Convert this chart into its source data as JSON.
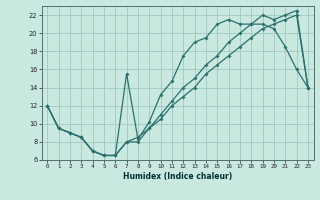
{
  "title": "",
  "xlabel": "Humidex (Indice chaleur)",
  "bg_color": "#c8e8e0",
  "grid_color": "#a0c8c0",
  "line_color": "#2d7070",
  "xlim": [
    -0.5,
    23.5
  ],
  "ylim": [
    6,
    23
  ],
  "xticks": [
    0,
    1,
    2,
    3,
    4,
    5,
    6,
    7,
    8,
    9,
    10,
    11,
    12,
    13,
    14,
    15,
    16,
    17,
    18,
    19,
    20,
    21,
    22,
    23
  ],
  "yticks": [
    6,
    8,
    10,
    12,
    14,
    16,
    18,
    20,
    22
  ],
  "series1_x": [
    0,
    1,
    2,
    3,
    4,
    5,
    6,
    7,
    8,
    9,
    10,
    11,
    12,
    13,
    14,
    15,
    16,
    17,
    18,
    19,
    20,
    21,
    22,
    23
  ],
  "series1_y": [
    12,
    9.5,
    9,
    8.5,
    7,
    6.5,
    6.5,
    15.5,
    8.3,
    10.2,
    13.2,
    14.7,
    17.5,
    19.0,
    19.5,
    21.0,
    21.5,
    21.0,
    21.0,
    21.0,
    20.5,
    18.5,
    16.0,
    14.0
  ],
  "series2_x": [
    0,
    1,
    2,
    3,
    4,
    5,
    6,
    7,
    8,
    9,
    10,
    11,
    12,
    13,
    14,
    15,
    16,
    17,
    18,
    19,
    20,
    21,
    22,
    23
  ],
  "series2_y": [
    12,
    9.5,
    9,
    8.5,
    7,
    6.5,
    6.5,
    8,
    8.5,
    9.5,
    11,
    12.5,
    14.0,
    15.0,
    16.5,
    17.5,
    19.0,
    20.0,
    21.0,
    22.0,
    21.5,
    22.0,
    22.5,
    14.0
  ],
  "series3_x": [
    0,
    1,
    2,
    3,
    4,
    5,
    6,
    7,
    8,
    9,
    10,
    11,
    12,
    13,
    14,
    15,
    16,
    17,
    18,
    19,
    20,
    21,
    22,
    23
  ],
  "series3_y": [
    12,
    9.5,
    9,
    8.5,
    7,
    6.5,
    6.5,
    8,
    8.0,
    9.5,
    10.5,
    12.0,
    13.0,
    14.0,
    15.5,
    16.5,
    17.5,
    18.5,
    19.5,
    20.5,
    21.0,
    21.5,
    22.0,
    14.0
  ]
}
